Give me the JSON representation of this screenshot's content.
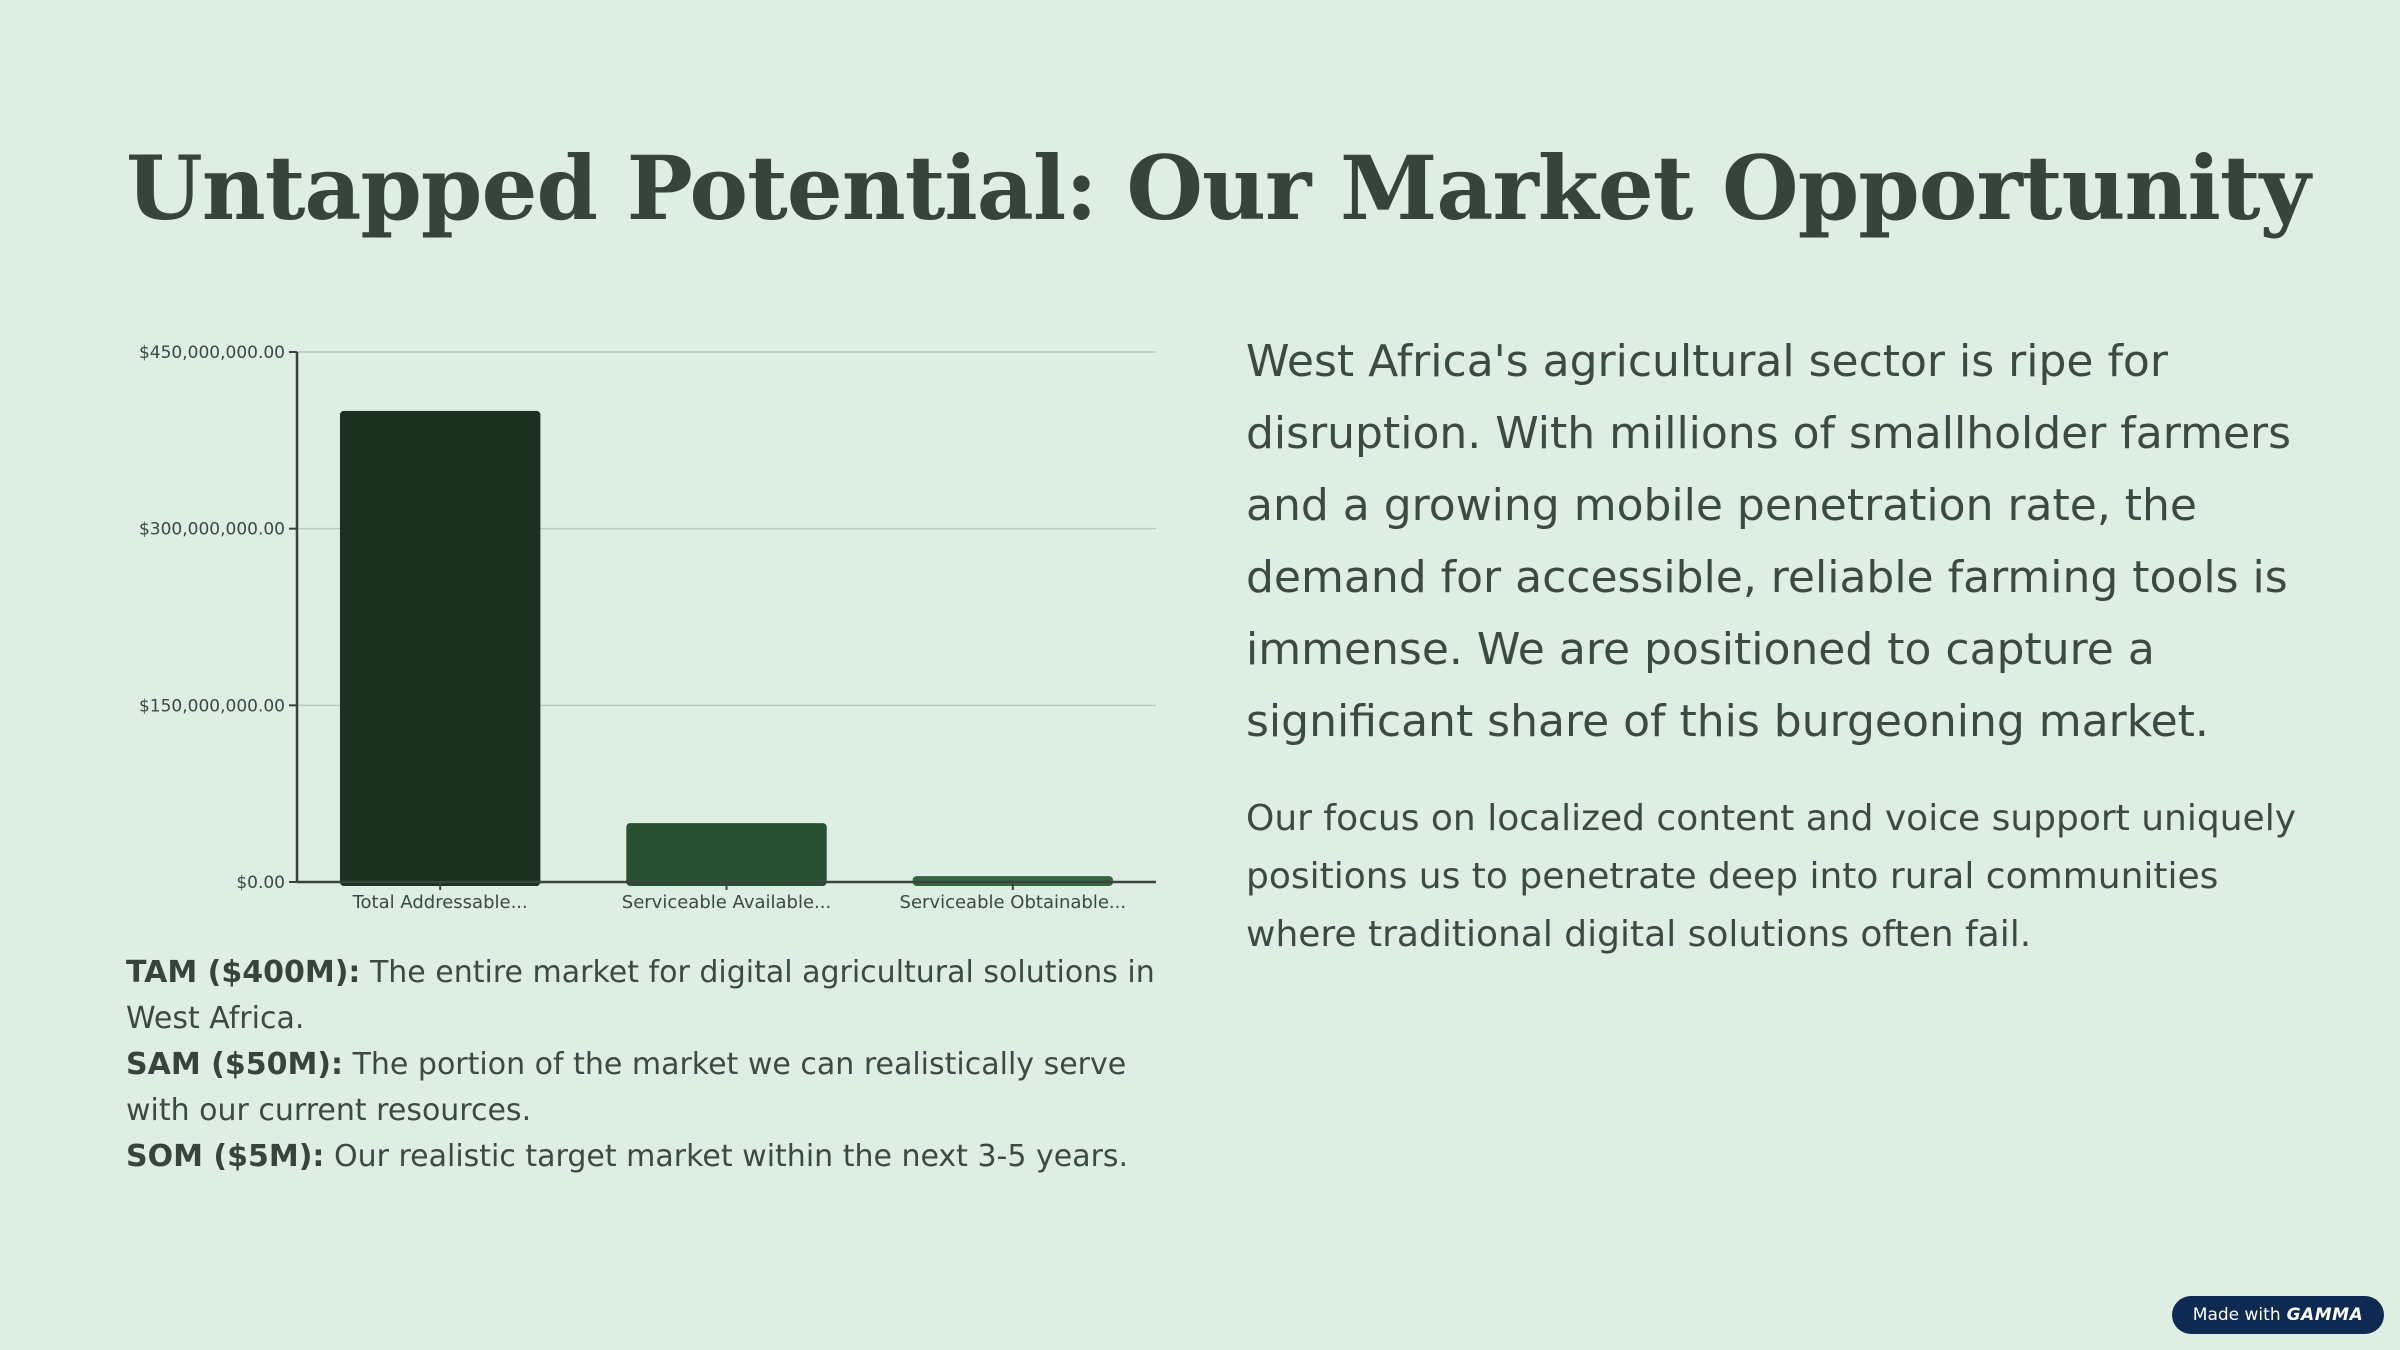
{
  "slide": {
    "title": "Untapped Potential: Our Market Opportunity",
    "definitions": [
      {
        "term": "TAM ($400M):",
        "text": " The entire market for digital agricultural solutions in West Africa."
      },
      {
        "term": "SAM ($50M):",
        "text": " The portion of the market we can realistically serve with our current resources."
      },
      {
        "term": "SOM ($5M):",
        "text": " Our realistic target market within the next 3-5 years."
      }
    ],
    "lead_paragraph": "West Africa's agricultural sector is ripe for disruption. With millions of smallholder farmers and a growing mobile penetration rate, the demand for accessible, reliable farming tools is immense. We are positioned to capture a significant share of this burgeoning market.",
    "secondary_paragraph": "Our focus on localized content and voice support uniquely positions us to penetrate deep into rural communities where traditional digital solutions often fail."
  },
  "badge": {
    "prefix": "Made with",
    "brand": "GAMMA"
  },
  "chart_data": {
    "type": "bar",
    "categories": [
      "Total Addressable...",
      "Serviceable Available...",
      "Serviceable Obtainable..."
    ],
    "values": [
      400000000,
      50000000,
      5000000
    ],
    "ylim": [
      0,
      450000000
    ],
    "yticks": [
      0,
      150000000,
      300000000,
      450000000
    ],
    "ytick_labels": [
      "$0.00",
      "$150,000,000.00",
      "$300,000,000.00",
      "$450,000,000.00"
    ],
    "grid": true,
    "bar_colors": [
      "#1b301f",
      "#2a5033",
      "#346640"
    ],
    "title": "",
    "xlabel": "",
    "ylabel": ""
  }
}
